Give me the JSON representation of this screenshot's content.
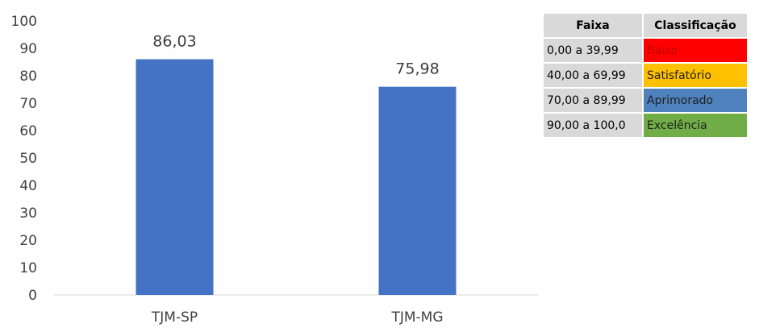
{
  "chart_data": {
    "type": "bar",
    "categories": [
      "TJM-SP",
      "TJM-MG"
    ],
    "values": [
      86.03,
      75.98
    ],
    "value_labels": [
      "86,03",
      "75,98"
    ],
    "ylim": [
      0,
      100
    ],
    "yticks": [
      0,
      10,
      20,
      30,
      40,
      50,
      60,
      70,
      80,
      90,
      100
    ],
    "bar_color": "#4472c4",
    "grid": false,
    "title": "",
    "xlabel": "",
    "ylabel": ""
  },
  "legend_table": {
    "headers": [
      "Faixa",
      "Classificação"
    ],
    "rows": [
      {
        "range": "0,00 a 39,99",
        "label": "Baixo",
        "color": "#ff0000"
      },
      {
        "range": "40,00 a 69,99",
        "label": "Satisfatório",
        "color": "#ffc000"
      },
      {
        "range": "70,00 a 89,99",
        "label": "Aprimorado",
        "color": "#4f81bd"
      },
      {
        "range": "90,00 a 100,0",
        "label": "Excelência",
        "color": "#70ad47"
      }
    ]
  }
}
